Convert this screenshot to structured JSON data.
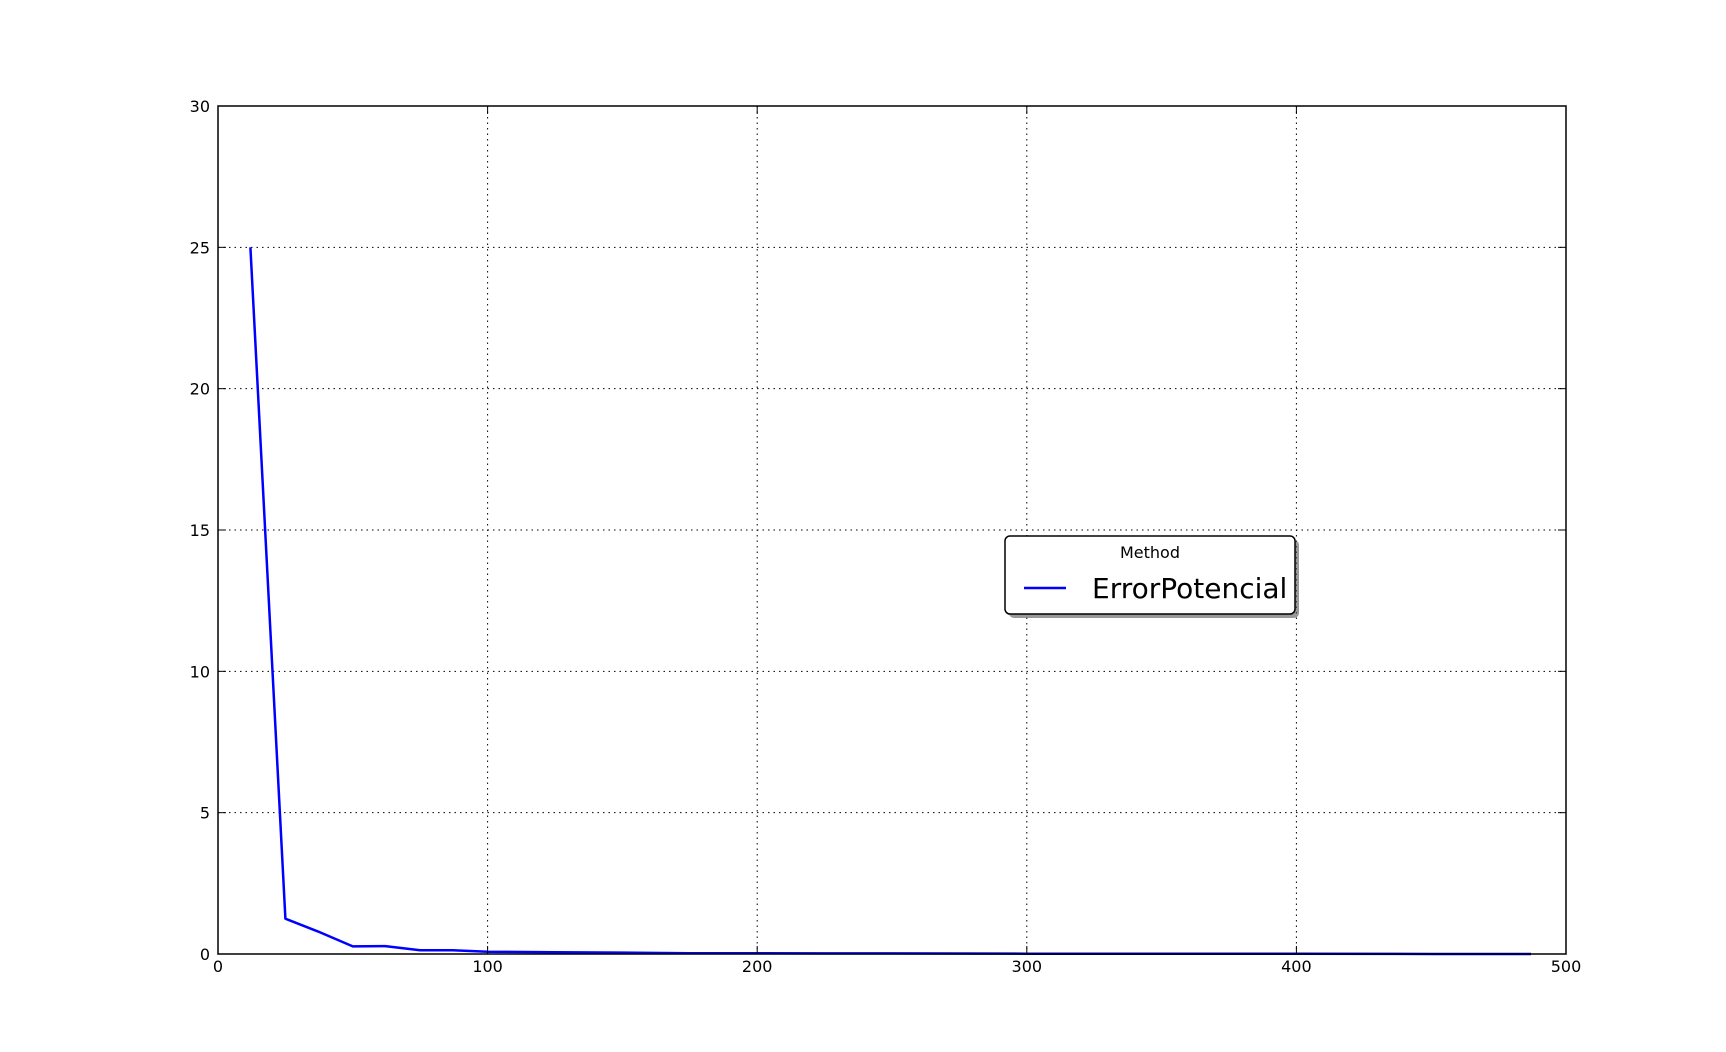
{
  "chart_data": {
    "type": "line",
    "title": "",
    "xlabel": "",
    "ylabel": "",
    "xlim": [
      0,
      500
    ],
    "ylim": [
      0,
      30
    ],
    "xticks": [
      "0",
      "100",
      "200",
      "300",
      "400",
      "500"
    ],
    "yticks": [
      "0",
      "5",
      "10",
      "15",
      "20",
      "25",
      "30"
    ],
    "grid": true,
    "legend": {
      "title": "Method",
      "placement": "center-right"
    },
    "series": [
      {
        "name": "ErrorPotencial",
        "color": "#0000ff",
        "points": [
          [
            12,
            25.0
          ],
          [
            25,
            1.25
          ],
          [
            37,
            0.8
          ],
          [
            50,
            0.27
          ],
          [
            62,
            0.28
          ],
          [
            75,
            0.13
          ],
          [
            87,
            0.13
          ],
          [
            100,
            0.08
          ],
          [
            125,
            0.06
          ],
          [
            150,
            0.05
          ],
          [
            175,
            0.03
          ],
          [
            200,
            0.03
          ],
          [
            225,
            0.02
          ],
          [
            250,
            0.02
          ],
          [
            300,
            0.01
          ],
          [
            350,
            0.01
          ],
          [
            400,
            0.01
          ],
          [
            450,
            0.0
          ],
          [
            487,
            0.0
          ]
        ]
      }
    ]
  }
}
